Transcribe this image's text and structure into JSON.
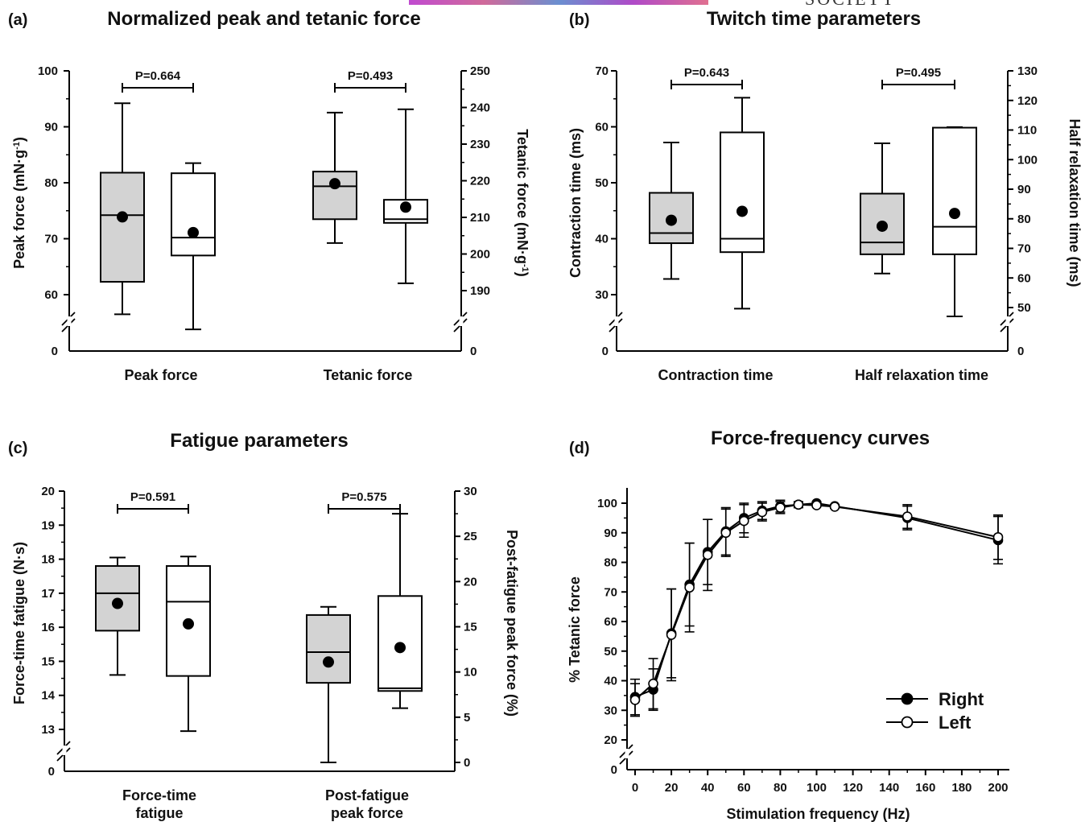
{
  "banner": {
    "text": "SOCIETY"
  },
  "panels": [
    {
      "id": "a",
      "letter": "(a)",
      "title": "Normalized peak and tetanic force"
    },
    {
      "id": "b",
      "letter": "(b)",
      "title": "Twitch time parameters"
    },
    {
      "id": "c",
      "letter": "(c)",
      "title": "Fatigue parameters"
    },
    {
      "id": "d",
      "letter": "(d)",
      "title": "Force-frequency curves"
    }
  ],
  "chart_data": [
    {
      "panel": "a",
      "type": "box",
      "title": "Normalized peak and tetanic force",
      "left_axis": {
        "label": "Peak force (mN·g⁻¹)",
        "range": [
          50,
          100
        ],
        "ticks": [
          60,
          70,
          80,
          90,
          100
        ],
        "break": true,
        "zero_label": "0"
      },
      "right_axis": {
        "label": "Tetanic force (mN·g⁻¹)",
        "range": [
          180,
          250
        ],
        "ticks": [
          190,
          200,
          210,
          220,
          230,
          240,
          250
        ],
        "break": true,
        "zero_label": "0"
      },
      "groups": [
        {
          "label": "Peak force",
          "axis": "left",
          "p_value": "P=0.664",
          "boxes": [
            {
              "side": "Right",
              "fill": "#d3d3d3",
              "whisker_low": 56.5,
              "q1": 62.3,
              "median": 74.2,
              "q3": 81.8,
              "whisker_high": 94.2,
              "mean": 73.9
            },
            {
              "side": "Left",
              "fill": "#ffffff",
              "whisker_low": 53.8,
              "q1": 67.0,
              "median": 70.2,
              "q3": 81.7,
              "whisker_high": 83.5,
              "mean": 71.1
            }
          ]
        },
        {
          "label": "Tetanic force",
          "axis": "right",
          "p_value": "P=0.493",
          "boxes": [
            {
              "side": "Right",
              "fill": "#d3d3d3",
              "whisker_low": 203,
              "q1": 209.5,
              "median": 218.5,
              "q3": 222.5,
              "whisker_high": 238.6,
              "mean": 219.2
            },
            {
              "side": "Left",
              "fill": "#ffffff",
              "whisker_low": 192,
              "q1": 208.5,
              "median": 209.5,
              "q3": 214.8,
              "whisker_high": 239.5,
              "mean": 212.8
            }
          ]
        }
      ]
    },
    {
      "panel": "b",
      "type": "box",
      "title": "Twitch time parameters",
      "left_axis": {
        "label": "Contraction time (ms)",
        "range": [
          25,
          70
        ],
        "ticks": [
          30,
          40,
          50,
          60,
          70
        ],
        "break": true,
        "zero_label": "0"
      },
      "right_axis": {
        "label": "Half relaxation time (ms)",
        "range": [
          45,
          130
        ],
        "ticks": [
          50,
          60,
          70,
          80,
          90,
          100,
          110,
          120,
          130
        ],
        "break": true,
        "zero_label": "0"
      },
      "groups": [
        {
          "label": "Contraction time",
          "axis": "left",
          "p_value": "P=0.643",
          "boxes": [
            {
              "side": "Right",
              "fill": "#d3d3d3",
              "whisker_low": 32.8,
              "q1": 39.2,
              "median": 41.0,
              "q3": 48.2,
              "whisker_high": 57.2,
              "mean": 43.3
            },
            {
              "side": "Left",
              "fill": "#ffffff",
              "whisker_low": 27.5,
              "q1": 37.6,
              "median": 40.0,
              "q3": 59.0,
              "whisker_high": 65.2,
              "mean": 44.9
            }
          ]
        },
        {
          "label": "Half relaxation time",
          "axis": "right",
          "p_value": "P=0.495",
          "boxes": [
            {
              "side": "Right",
              "fill": "#d3d3d3",
              "whisker_low": 61.5,
              "q1": 68.0,
              "median": 72.0,
              "q3": 88.5,
              "whisker_high": 105.5,
              "mean": 77.5
            },
            {
              "side": "Left",
              "fill": "#ffffff",
              "whisker_low": 47.0,
              "q1": 68.0,
              "median": 77.3,
              "q3": 110.8,
              "whisker_high": 111.0,
              "mean": 81.8
            }
          ]
        }
      ]
    },
    {
      "panel": "c",
      "type": "box",
      "title": "Fatigue parameters",
      "left_axis": {
        "label": "Force-time fatigue (N·s)",
        "range": [
          12.5,
          20
        ],
        "ticks": [
          13,
          14,
          15,
          16,
          17,
          18,
          19,
          20
        ],
        "break": true,
        "zero_label": "0"
      },
      "right_axis": {
        "label": "Post-fatigue peak force (%)",
        "range": [
          0,
          30
        ],
        "ticks": [
          0,
          5,
          10,
          15,
          20,
          25,
          30
        ],
        "break": false
      },
      "groups": [
        {
          "label": "Force-time\nfatigue",
          "axis": "left",
          "p_value": "P=0.591",
          "boxes": [
            {
              "side": "Right",
              "fill": "#d3d3d3",
              "whisker_low": 14.6,
              "q1": 15.9,
              "median": 17.0,
              "q3": 17.8,
              "whisker_high": 18.05,
              "mean": 16.7
            },
            {
              "side": "Left",
              "fill": "#ffffff",
              "whisker_low": 12.95,
              "q1": 14.57,
              "median": 16.75,
              "q3": 17.8,
              "whisker_high": 18.08,
              "mean": 16.1
            }
          ]
        },
        {
          "label": "Post-fatigue\npeak force",
          "axis": "right",
          "p_value": "P=0.575",
          "boxes": [
            {
              "side": "Right",
              "fill": "#d3d3d3",
              "whisker_low": 0.0,
              "q1": 8.8,
              "median": 12.2,
              "q3": 16.3,
              "whisker_high": 17.2,
              "mean": 11.1
            },
            {
              "side": "Left",
              "fill": "#ffffff",
              "whisker_low": 6.0,
              "q1": 7.9,
              "median": 8.2,
              "q3": 18.4,
              "whisker_high": 27.5,
              "mean": 12.7
            }
          ]
        }
      ]
    },
    {
      "panel": "d",
      "type": "line",
      "title": "Force-frequency curves",
      "xlabel": "Stimulation frequency (Hz)",
      "ylabel": "% Tetanic force",
      "xlim": [
        0,
        210
      ],
      "xticks": [
        0,
        20,
        40,
        60,
        80,
        100,
        120,
        140,
        160,
        180,
        200
      ],
      "ylim": [
        15,
        100
      ],
      "yticks": [
        20,
        30,
        40,
        50,
        60,
        70,
        80,
        90,
        100
      ],
      "y_break": true,
      "zero_label": "0",
      "x": [
        0,
        10,
        20,
        30,
        40,
        50,
        60,
        70,
        80,
        90,
        100,
        110,
        150,
        200
      ],
      "series": [
        {
          "name": "Right",
          "marker": "filled",
          "values": [
            34.5,
            37.0,
            56.0,
            72.5,
            83.5,
            90.5,
            95.0,
            97.5,
            99.0,
            99.5,
            100.0,
            99.0,
            95.0,
            87.5
          ],
          "err": [
            6.0,
            7.0,
            15.0,
            14.0,
            11.0,
            8.0,
            5.0,
            3.0,
            2.0,
            1.0,
            0.5,
            0.5,
            4.0,
            8.0
          ]
        },
        {
          "name": "Left",
          "marker": "open",
          "values": [
            33.5,
            39.0,
            55.5,
            71.5,
            82.5,
            90.0,
            94.0,
            97.0,
            98.5,
            99.5,
            99.3,
            98.8,
            95.5,
            88.5
          ],
          "err": [
            5.5,
            8.5,
            15.5,
            15.0,
            12.0,
            8.0,
            5.5,
            3.0,
            2.0,
            1.0,
            0.5,
            0.5,
            4.0,
            7.5
          ]
        }
      ],
      "legend": "bottom-right"
    }
  ]
}
